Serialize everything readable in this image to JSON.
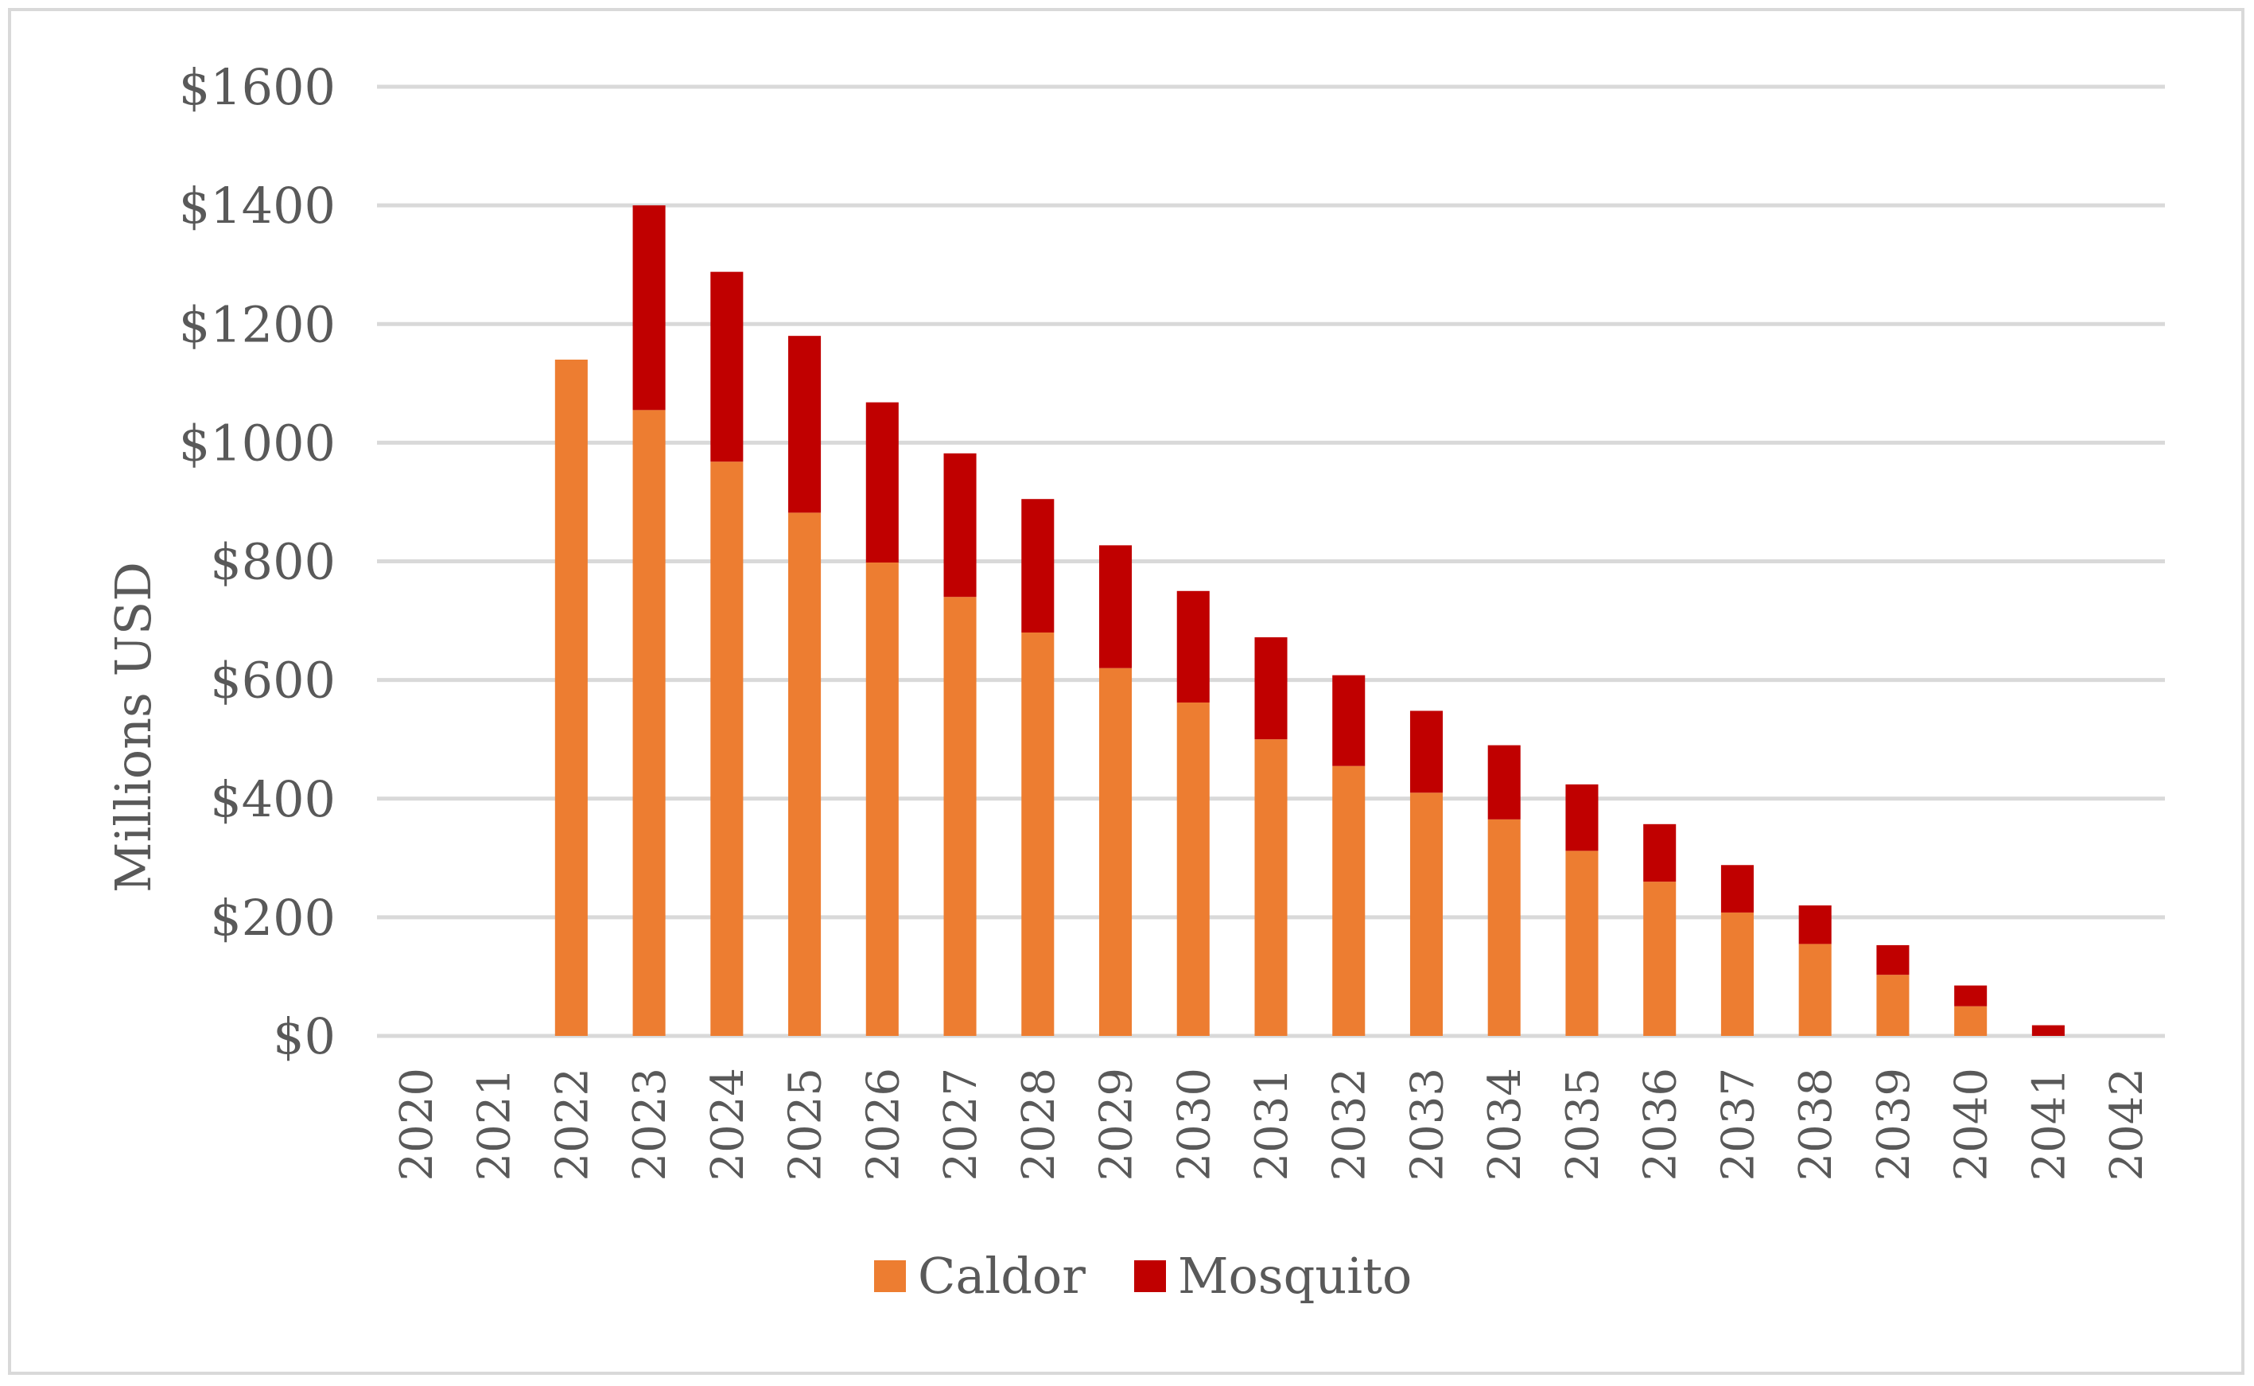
{
  "chart_data": {
    "type": "bar",
    "stacked": true,
    "ylabel": "Millions USD",
    "xlabel": "",
    "ylim": [
      0,
      1600
    ],
    "y_ticks": [
      0,
      200,
      400,
      600,
      800,
      1000,
      1200,
      1400,
      1600
    ],
    "y_tick_labels": [
      "$0",
      "$200",
      "$400",
      "$600",
      "$800",
      "$1000",
      "$1200",
      "$1400",
      "$1600"
    ],
    "grid": true,
    "legend_position": "bottom",
    "categories": [
      "2020",
      "2021",
      "2022",
      "2023",
      "2024",
      "2025",
      "2026",
      "2027",
      "2028",
      "2029",
      "2030",
      "2031",
      "2032",
      "2033",
      "2034",
      "2035",
      "2036",
      "2037",
      "2038",
      "2039",
      "2040",
      "2041",
      "2042"
    ],
    "series": [
      {
        "name": "Caldor",
        "color": "#ed7d31",
        "values": [
          0,
          0,
          1140,
          1055,
          968,
          882,
          798,
          740,
          680,
          620,
          562,
          500,
          455,
          410,
          365,
          312,
          260,
          208,
          155,
          103,
          50,
          0,
          0
        ]
      },
      {
        "name": "Mosquito",
        "color": "#c00000",
        "values": [
          0,
          0,
          0,
          345,
          320,
          298,
          270,
          242,
          225,
          207,
          188,
          172,
          153,
          138,
          125,
          112,
          97,
          80,
          65,
          50,
          35,
          18,
          0
        ]
      }
    ]
  }
}
